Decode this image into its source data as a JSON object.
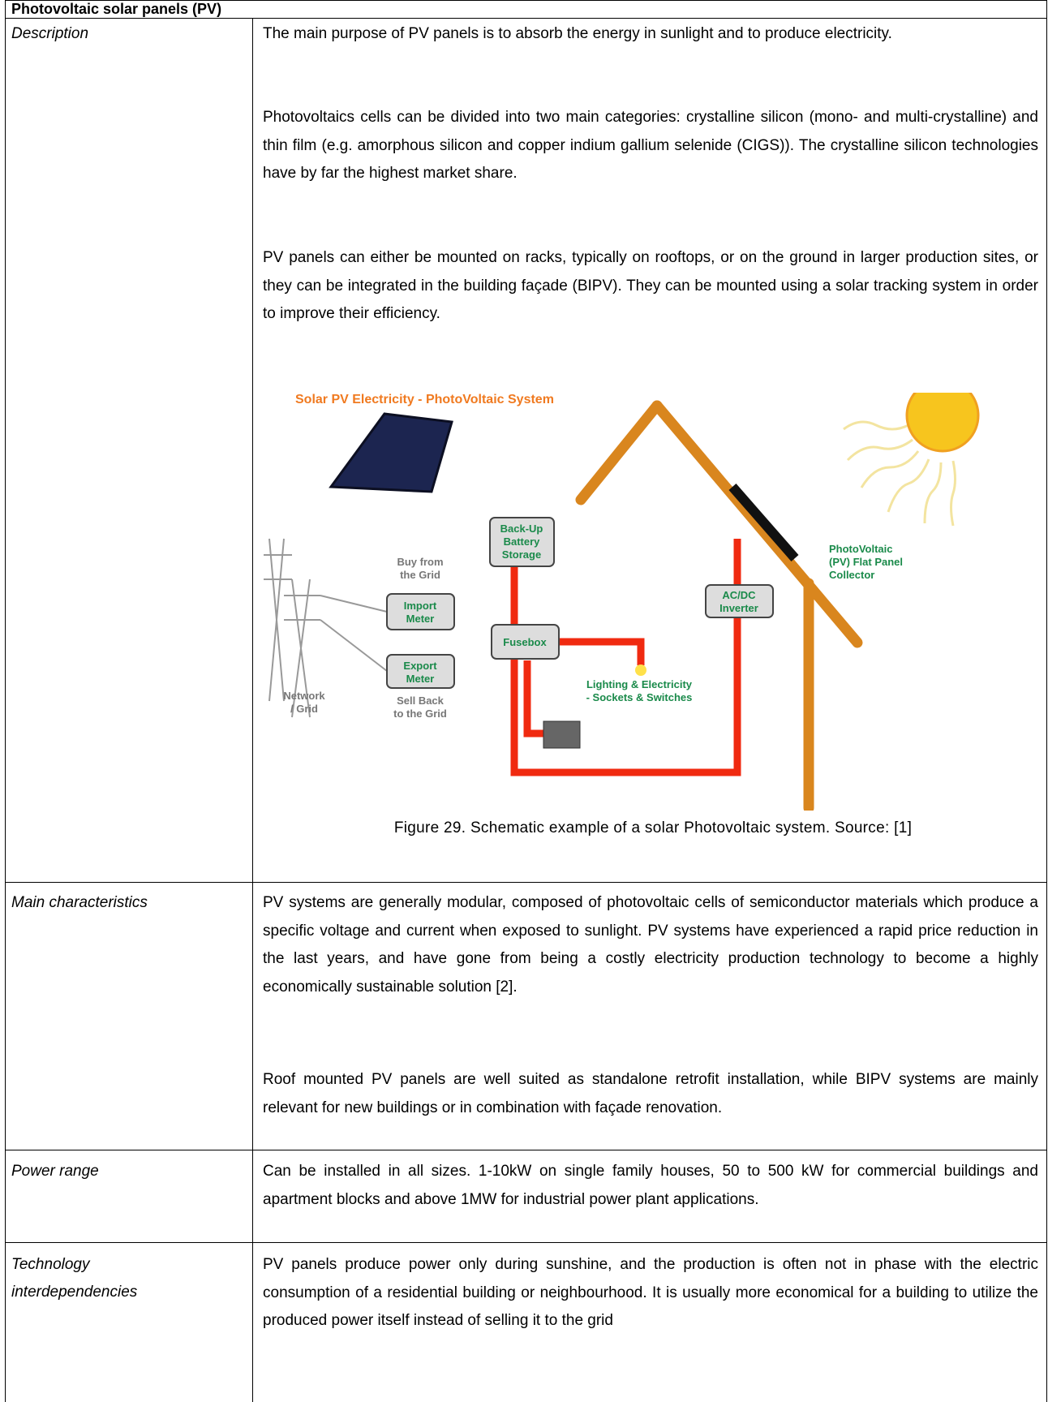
{
  "table": {
    "title": "Photovoltaic solar panels (PV)",
    "rows": [
      {
        "label": "Description",
        "paragraphs": [
          "The main purpose of PV panels is to absorb the energy in sunlight and to produce electricity.",
          "Photovoltaics cells can be divided into two main categories: crystalline silicon (mono- and multi-crystalline) and thin film (e.g. amorphous silicon and copper indium gallium selenide (CIGS)). The crystalline silicon technologies have by far the highest market share.",
          "PV panels can either be mounted on racks, typically on rooftops, or on the ground in larger production sites, or they can be integrated in the building façade (BIPV). They can be mounted using a solar tracking system in order to improve their efficiency."
        ],
        "figure": {
          "title": "Solar PV Electricity - PhotoVoltaic System",
          "battery": [
            "Back-Up",
            "Battery",
            "Storage"
          ],
          "buy": [
            "Buy from",
            "the Grid"
          ],
          "import_meter": [
            "Import",
            "Meter"
          ],
          "export_meter": [
            "Export",
            "Meter"
          ],
          "fusebox": "Fusebox",
          "inverter": [
            "AC/DC",
            "Inverter"
          ],
          "network": [
            "Network",
            "/ Grid"
          ],
          "sell": [
            "Sell Back",
            "to the Grid"
          ],
          "lighting": [
            "Lighting & Electricity",
            "- Sockets & Switches"
          ],
          "collector": [
            "PhotoVoltaic",
            "(PV) Flat Panel",
            "Collector"
          ],
          "caption": "Figure 29. Schematic example of a solar Photovoltaic system. Source: [1]"
        }
      },
      {
        "label": "Main characteristics",
        "paragraphs": [
          "PV systems are generally modular, composed of photovoltaic cells of semiconductor materials which produce a specific voltage and current when exposed to sunlight. PV systems have experienced a rapid price reduction in the last years, and have gone from being a costly electricity production technology to become a highly economically sustainable solution [2].",
          "Roof mounted PV panels are well suited as standalone retrofit installation, while BIPV systems are mainly relevant for new buildings or in combination with façade renovation."
        ]
      },
      {
        "label": "Power range",
        "paragraphs": [
          "Can be installed in all sizes. 1-10kW on single family houses, 50 to 500 kW for commercial buildings and apartment blocks and above 1MW for industrial power plant applications."
        ]
      },
      {
        "label": "Technology interdependencies",
        "paragraphs": [
          "PV panels produce power only during sunshine, and the production is often not in phase with the electric consumption of a residential building or neighbourhood. It is usually more economical for a building to utilize the produced power itself instead of selling it to the grid"
        ]
      }
    ]
  }
}
